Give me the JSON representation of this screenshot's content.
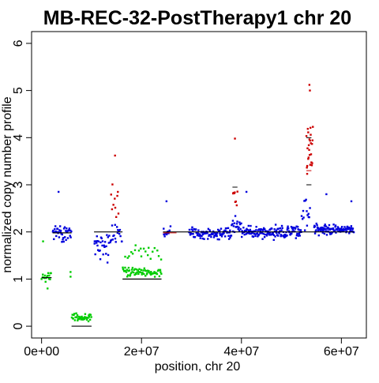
{
  "chart_data": {
    "type": "scatter",
    "title": "MB-REC-32-PostTherapy1 chr 20",
    "xlabel": "position, chr 20",
    "ylabel": "normalized copy number profile",
    "xlim": [
      -2000000,
      65000000
    ],
    "ylim": [
      -0.25,
      6.25
    ],
    "x_ticks": [
      {
        "value": 0,
        "label": "0e+00"
      },
      {
        "value": 20000000,
        "label": "2e+07"
      },
      {
        "value": 40000000,
        "label": "4e+07"
      },
      {
        "value": 60000000,
        "label": "6e+07"
      }
    ],
    "y_ticks": [
      {
        "value": 0,
        "label": "0"
      },
      {
        "value": 1,
        "label": "1"
      },
      {
        "value": 2,
        "label": "2"
      },
      {
        "value": 3,
        "label": "3"
      },
      {
        "value": 4,
        "label": "4"
      },
      {
        "value": 5,
        "label": "5"
      },
      {
        "value": 6,
        "label": "6"
      }
    ],
    "colors": {
      "loss": "#00cc00",
      "neutral": "#0000dd",
      "gain": "#cc0000",
      "segment": "#000000",
      "segment_alt": "#cc0000"
    },
    "point_clusters": [
      {
        "state": "loss",
        "x_range": [
          0,
          2000000
        ],
        "y_center": 1.05,
        "y_spread": 0.08,
        "n": 16
      },
      {
        "state": "neutral",
        "x_range": [
          2200000,
          6000000
        ],
        "y_center": 2.0,
        "y_spread": 0.15,
        "n": 40
      },
      {
        "state": "loss",
        "x_range": [
          6000000,
          10000000
        ],
        "y_center": 0.18,
        "y_spread": 0.09,
        "n": 40
      },
      {
        "state": "neutral",
        "x_range": [
          10500000,
          13500000
        ],
        "y_center": 1.7,
        "y_spread": 0.3,
        "n": 30
      },
      {
        "state": "neutral",
        "x_range": [
          13500000,
          16200000
        ],
        "y_center": 2.0,
        "y_spread": 0.3,
        "n": 20
      },
      {
        "state": "gain",
        "x_range": [
          13800000,
          15500000
        ],
        "y_center": 2.7,
        "y_spread": 0.35,
        "n": 10
      },
      {
        "state": "loss",
        "x_range": [
          16200000,
          24000000
        ],
        "y_center": 1.15,
        "y_spread": 0.1,
        "n": 70
      },
      {
        "state": "loss",
        "x_range": [
          16500000,
          24000000
        ],
        "y_center": 1.55,
        "y_spread": 0.2,
        "n": 20
      },
      {
        "state": "neutral",
        "x_range": [
          24300000,
          25800000
        ],
        "y_center": 2.0,
        "y_spread": 0.1,
        "n": 10
      },
      {
        "state": "neutral",
        "x_range": [
          29500000,
          38000000
        ],
        "y_center": 1.97,
        "y_spread": 0.1,
        "n": 95
      },
      {
        "state": "neutral",
        "x_range": [
          38000000,
          40000000
        ],
        "y_center": 2.15,
        "y_spread": 0.2,
        "n": 20
      },
      {
        "state": "gain",
        "x_range": [
          38300000,
          39200000
        ],
        "y_center": 2.75,
        "y_spread": 0.25,
        "n": 8
      },
      {
        "state": "neutral",
        "x_range": [
          40000000,
          52000000
        ],
        "y_center": 2.0,
        "y_spread": 0.12,
        "n": 150
      },
      {
        "state": "neutral",
        "x_range": [
          52000000,
          53800000
        ],
        "y_center": 2.4,
        "y_spread": 0.3,
        "n": 15
      },
      {
        "state": "gain",
        "x_range": [
          53000000,
          54300000
        ],
        "y_center": 3.7,
        "y_spread": 0.6,
        "n": 25
      },
      {
        "state": "neutral",
        "x_range": [
          54500000,
          62500000
        ],
        "y_center": 2.05,
        "y_spread": 0.1,
        "n": 110
      }
    ],
    "isolated_points": [
      {
        "x": 300000,
        "y": 1.8,
        "state": "loss"
      },
      {
        "x": 1200000,
        "y": 0.8,
        "state": "loss"
      },
      {
        "x": 3400000,
        "y": 2.85,
        "state": "neutral"
      },
      {
        "x": 5800000,
        "y": 1.15,
        "state": "loss"
      },
      {
        "x": 5800000,
        "y": 1.05,
        "state": "loss"
      },
      {
        "x": 14700000,
        "y": 3.62,
        "state": "gain"
      },
      {
        "x": 25000000,
        "y": 2.65,
        "state": "neutral"
      },
      {
        "x": 38700000,
        "y": 3.98,
        "state": "gain"
      },
      {
        "x": 41000000,
        "y": 2.85,
        "state": "neutral"
      },
      {
        "x": 53600000,
        "y": 5.12,
        "state": "gain"
      },
      {
        "x": 53700000,
        "y": 5.0,
        "state": "gain"
      },
      {
        "x": 57000000,
        "y": 2.8,
        "state": "neutral"
      },
      {
        "x": 62000000,
        "y": 2.65,
        "state": "neutral"
      }
    ],
    "segments": [
      {
        "x0": 0,
        "x1": 2000000,
        "y": 1.03
      },
      {
        "x0": 2200000,
        "y": 1.98,
        "x1": 6000000
      },
      {
        "x0": 6000000,
        "x1": 10000000,
        "y": 0.0
      },
      {
        "x0": 10500000,
        "x1": 16200000,
        "y": 2.0
      },
      {
        "x0": 16200000,
        "x1": 24000000,
        "y": 1.0
      },
      {
        "x0": 24300000,
        "x1": 38200000,
        "y": 2.0
      },
      {
        "x0": 38200000,
        "x1": 62500000,
        "y": 2.0
      }
    ],
    "marker_segments": [
      {
        "x0": 24300000,
        "x1": 27000000,
        "y": 1.98,
        "color": "#cc0000"
      },
      {
        "x0": 38200000,
        "x1": 39200000,
        "y": 2.95,
        "color": "#000000"
      },
      {
        "x0": 53000000,
        "x1": 54000000,
        "y": 3.0,
        "color": "#000000"
      },
      {
        "x0": 53000000,
        "x1": 54000000,
        "y": 4.0,
        "color": "#000000"
      },
      {
        "x0": 53000000,
        "x1": 54000000,
        "y": 3.3,
        "color": "#cc0000"
      }
    ],
    "grid": false,
    "legend": "none"
  }
}
